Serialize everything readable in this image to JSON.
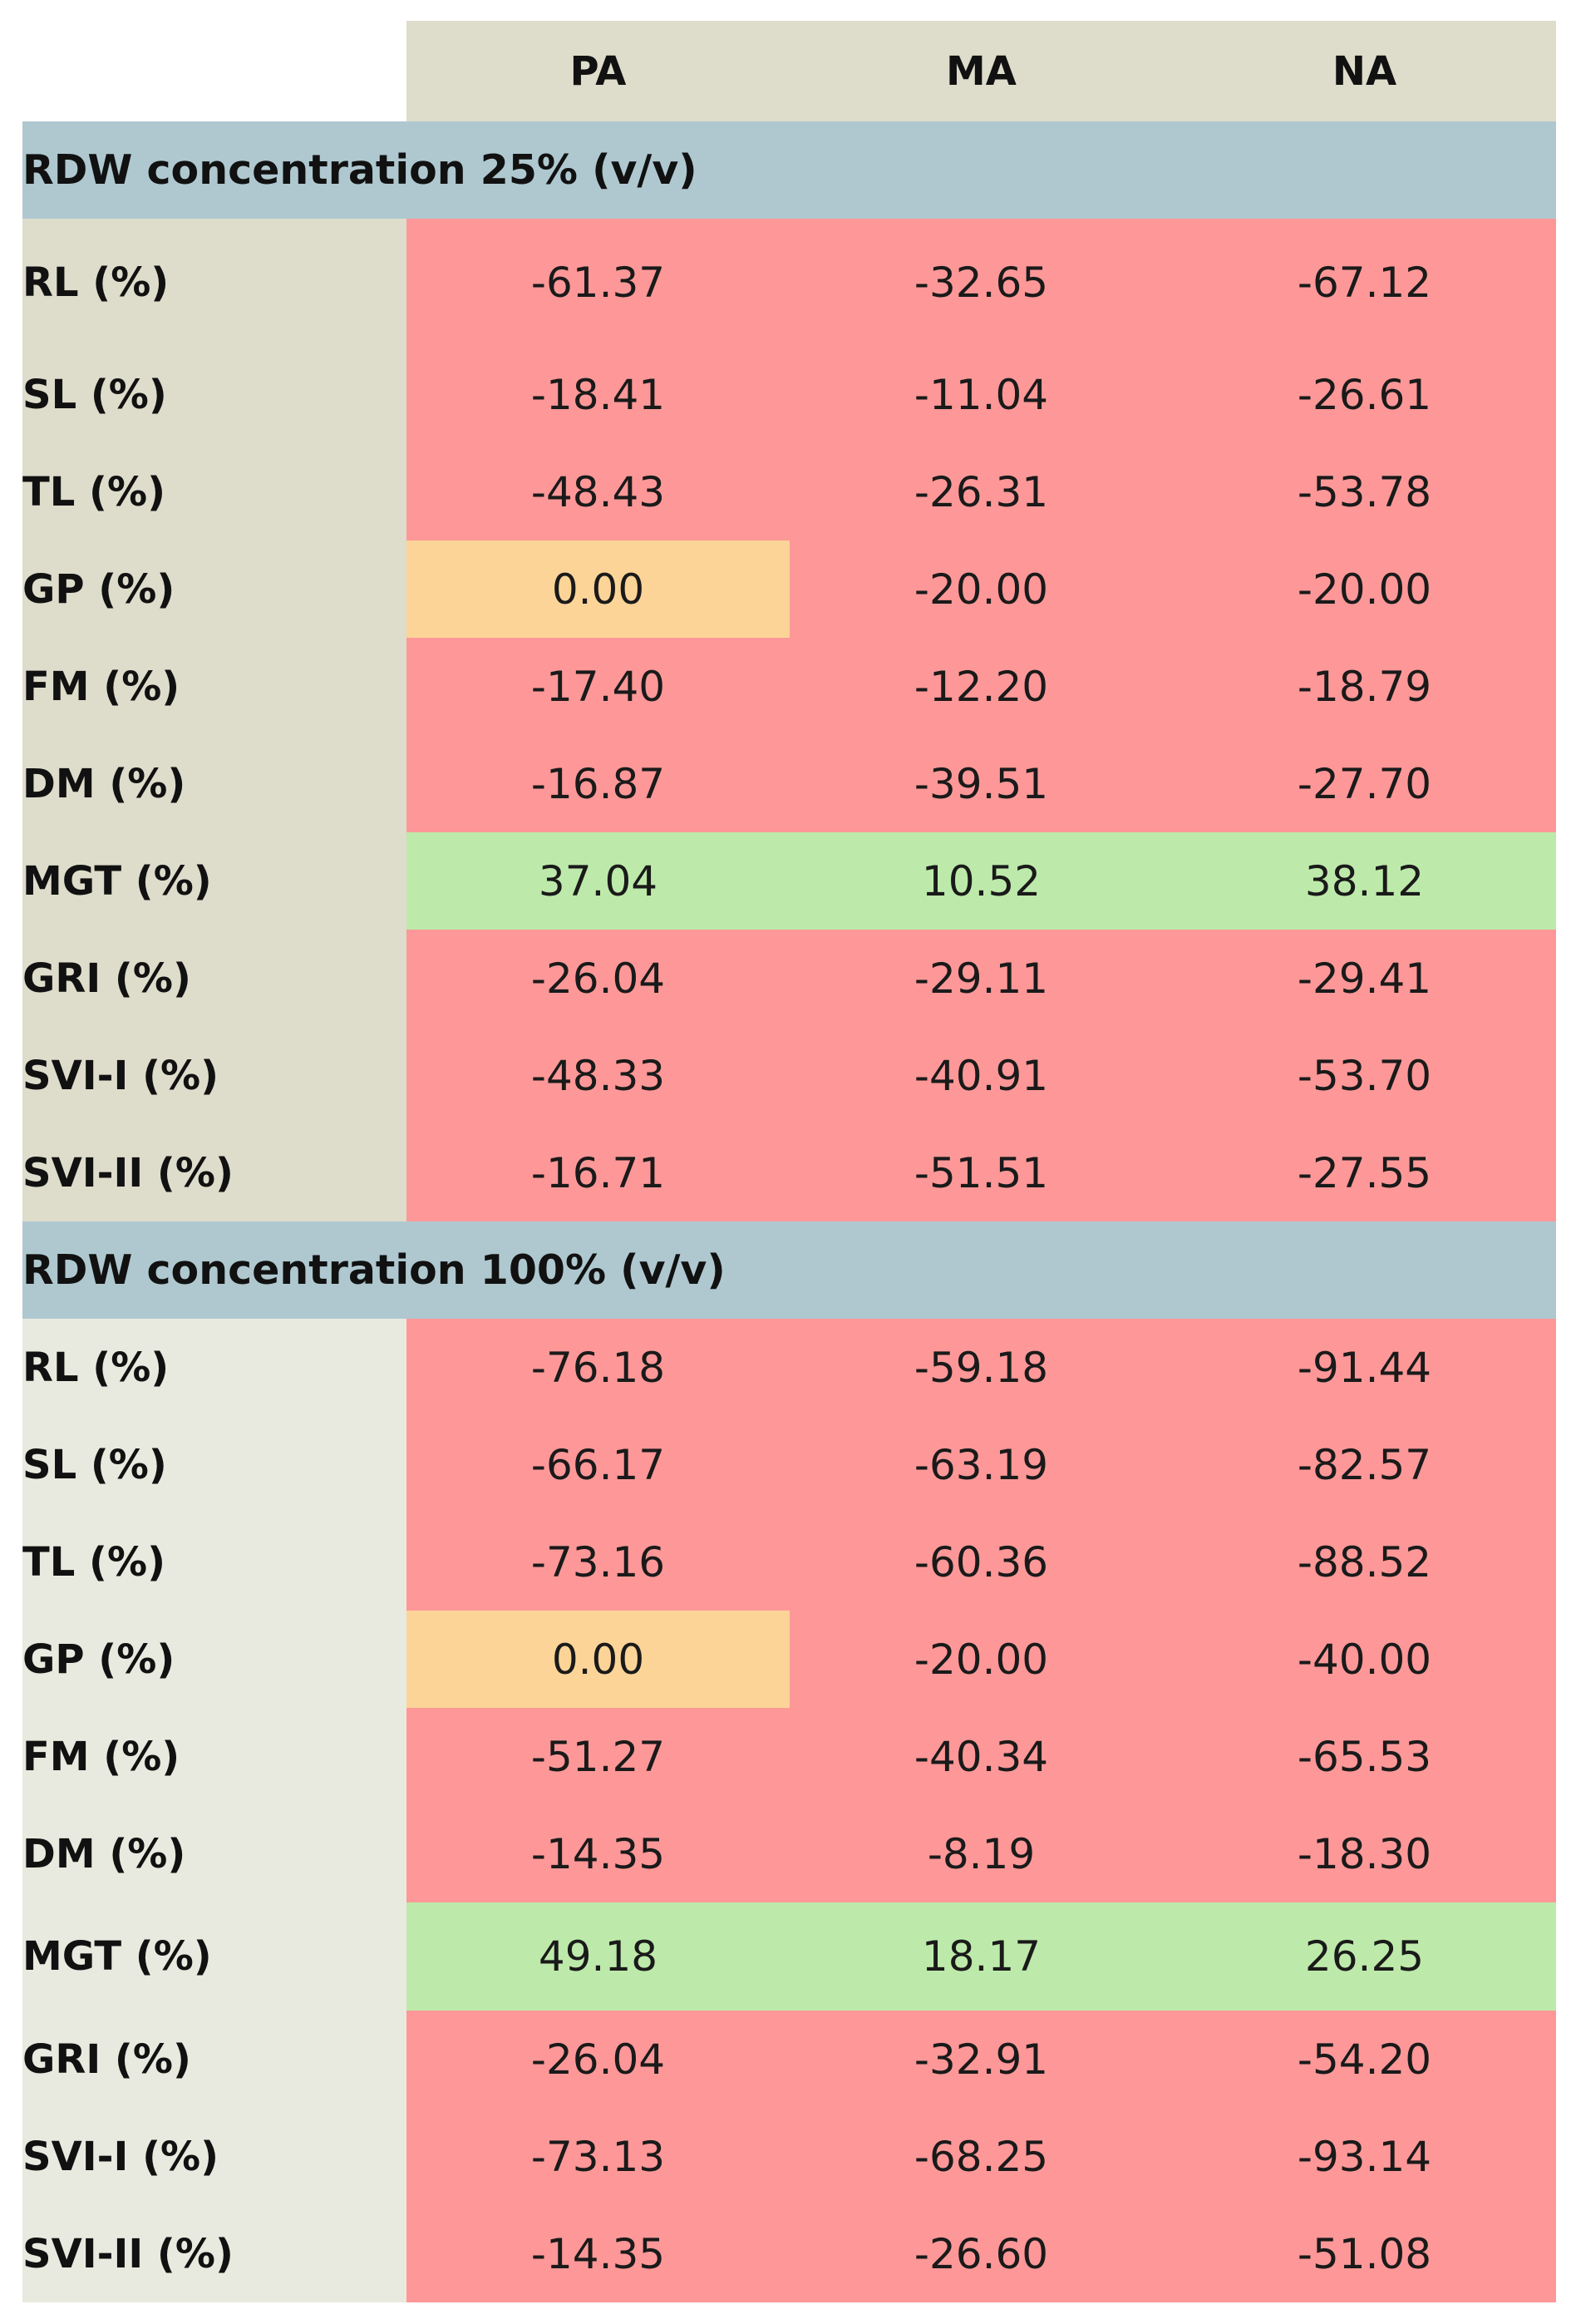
{
  "columns": [
    "PA",
    "MA",
    "NA"
  ],
  "groups": [
    {
      "title": "RDW concentration 25% (v/v)",
      "rows": [
        {
          "label": "RL (%)",
          "values": [
            "-61.37",
            "-32.65",
            "-67.12"
          ],
          "status": [
            "neg",
            "neg",
            "neg"
          ]
        },
        {
          "label": "SL (%)",
          "values": [
            "-18.41",
            "-11.04",
            "-26.61"
          ],
          "status": [
            "neg",
            "neg",
            "neg"
          ]
        },
        {
          "label": "TL (%)",
          "values": [
            "-48.43",
            "-26.31",
            "-53.78"
          ],
          "status": [
            "neg",
            "neg",
            "neg"
          ]
        },
        {
          "label": "GP (%)",
          "values": [
            "0.00",
            "-20.00",
            "-20.00"
          ],
          "status": [
            "zero",
            "neg",
            "neg"
          ]
        },
        {
          "label": "FM (%)",
          "values": [
            "-17.40",
            "-12.20",
            "-18.79"
          ],
          "status": [
            "neg",
            "neg",
            "neg"
          ]
        },
        {
          "label": "DM (%)",
          "values": [
            "-16.87",
            "-39.51",
            "-27.70"
          ],
          "status": [
            "neg",
            "neg",
            "neg"
          ]
        },
        {
          "label": "MGT (%)",
          "values": [
            "37.04",
            "10.52",
            "38.12"
          ],
          "status": [
            "pos",
            "pos",
            "pos"
          ]
        },
        {
          "label": "GRI (%)",
          "values": [
            "-26.04",
            "-29.11",
            "-29.41"
          ],
          "status": [
            "neg",
            "neg",
            "neg"
          ]
        },
        {
          "label": "SVI-I (%)",
          "values": [
            "-48.33",
            "-40.91",
            "-53.70"
          ],
          "status": [
            "neg",
            "neg",
            "neg"
          ]
        },
        {
          "label": "SVI-II (%)",
          "values": [
            "-16.71",
            "-51.51",
            "-27.55"
          ],
          "status": [
            "neg",
            "neg",
            "neg"
          ]
        }
      ]
    },
    {
      "title": "RDW concentration 100% (v/v)",
      "rows": [
        {
          "label": "RL (%)",
          "values": [
            "-76.18",
            "-59.18",
            "-91.44"
          ],
          "status": [
            "neg",
            "neg",
            "neg"
          ]
        },
        {
          "label": "SL (%)",
          "values": [
            "-66.17",
            "-63.19",
            "-82.57"
          ],
          "status": [
            "neg",
            "neg",
            "neg"
          ]
        },
        {
          "label": "TL (%)",
          "values": [
            "-73.16",
            "-60.36",
            "-88.52"
          ],
          "status": [
            "neg",
            "neg",
            "neg"
          ]
        },
        {
          "label": "GP (%)",
          "values": [
            "0.00",
            "-20.00",
            "-40.00"
          ],
          "status": [
            "zero",
            "neg",
            "neg"
          ]
        },
        {
          "label": "FM (%)",
          "values": [
            "-51.27",
            "-40.34",
            "-65.53"
          ],
          "status": [
            "neg",
            "neg",
            "neg"
          ]
        },
        {
          "label": "DM (%)",
          "values": [
            "-14.35",
            "-8.19",
            "-18.30"
          ],
          "status": [
            "neg",
            "neg",
            "neg"
          ]
        },
        {
          "label": "MGT (%)",
          "values": [
            "49.18",
            "18.17",
            "26.25"
          ],
          "status": [
            "pos",
            "pos",
            "pos"
          ]
        },
        {
          "label": "GRI (%)",
          "values": [
            "-26.04",
            "-32.91",
            "-54.20"
          ],
          "status": [
            "neg",
            "neg",
            "neg"
          ]
        },
        {
          "label": "SVI-I (%)",
          "values": [
            "-73.13",
            "-68.25",
            "-93.14"
          ],
          "status": [
            "neg",
            "neg",
            "neg"
          ]
        },
        {
          "label": "SVI-II (%)",
          "values": [
            "-14.35",
            "-26.60",
            "-51.08"
          ],
          "status": [
            "neg",
            "neg",
            "neg"
          ]
        }
      ]
    }
  ],
  "colors": {
    "negative": "#fe9898",
    "zero": "#fdd498",
    "positive": "#bdeaaa",
    "header": "#dedccb",
    "section": "#afc8d0"
  }
}
